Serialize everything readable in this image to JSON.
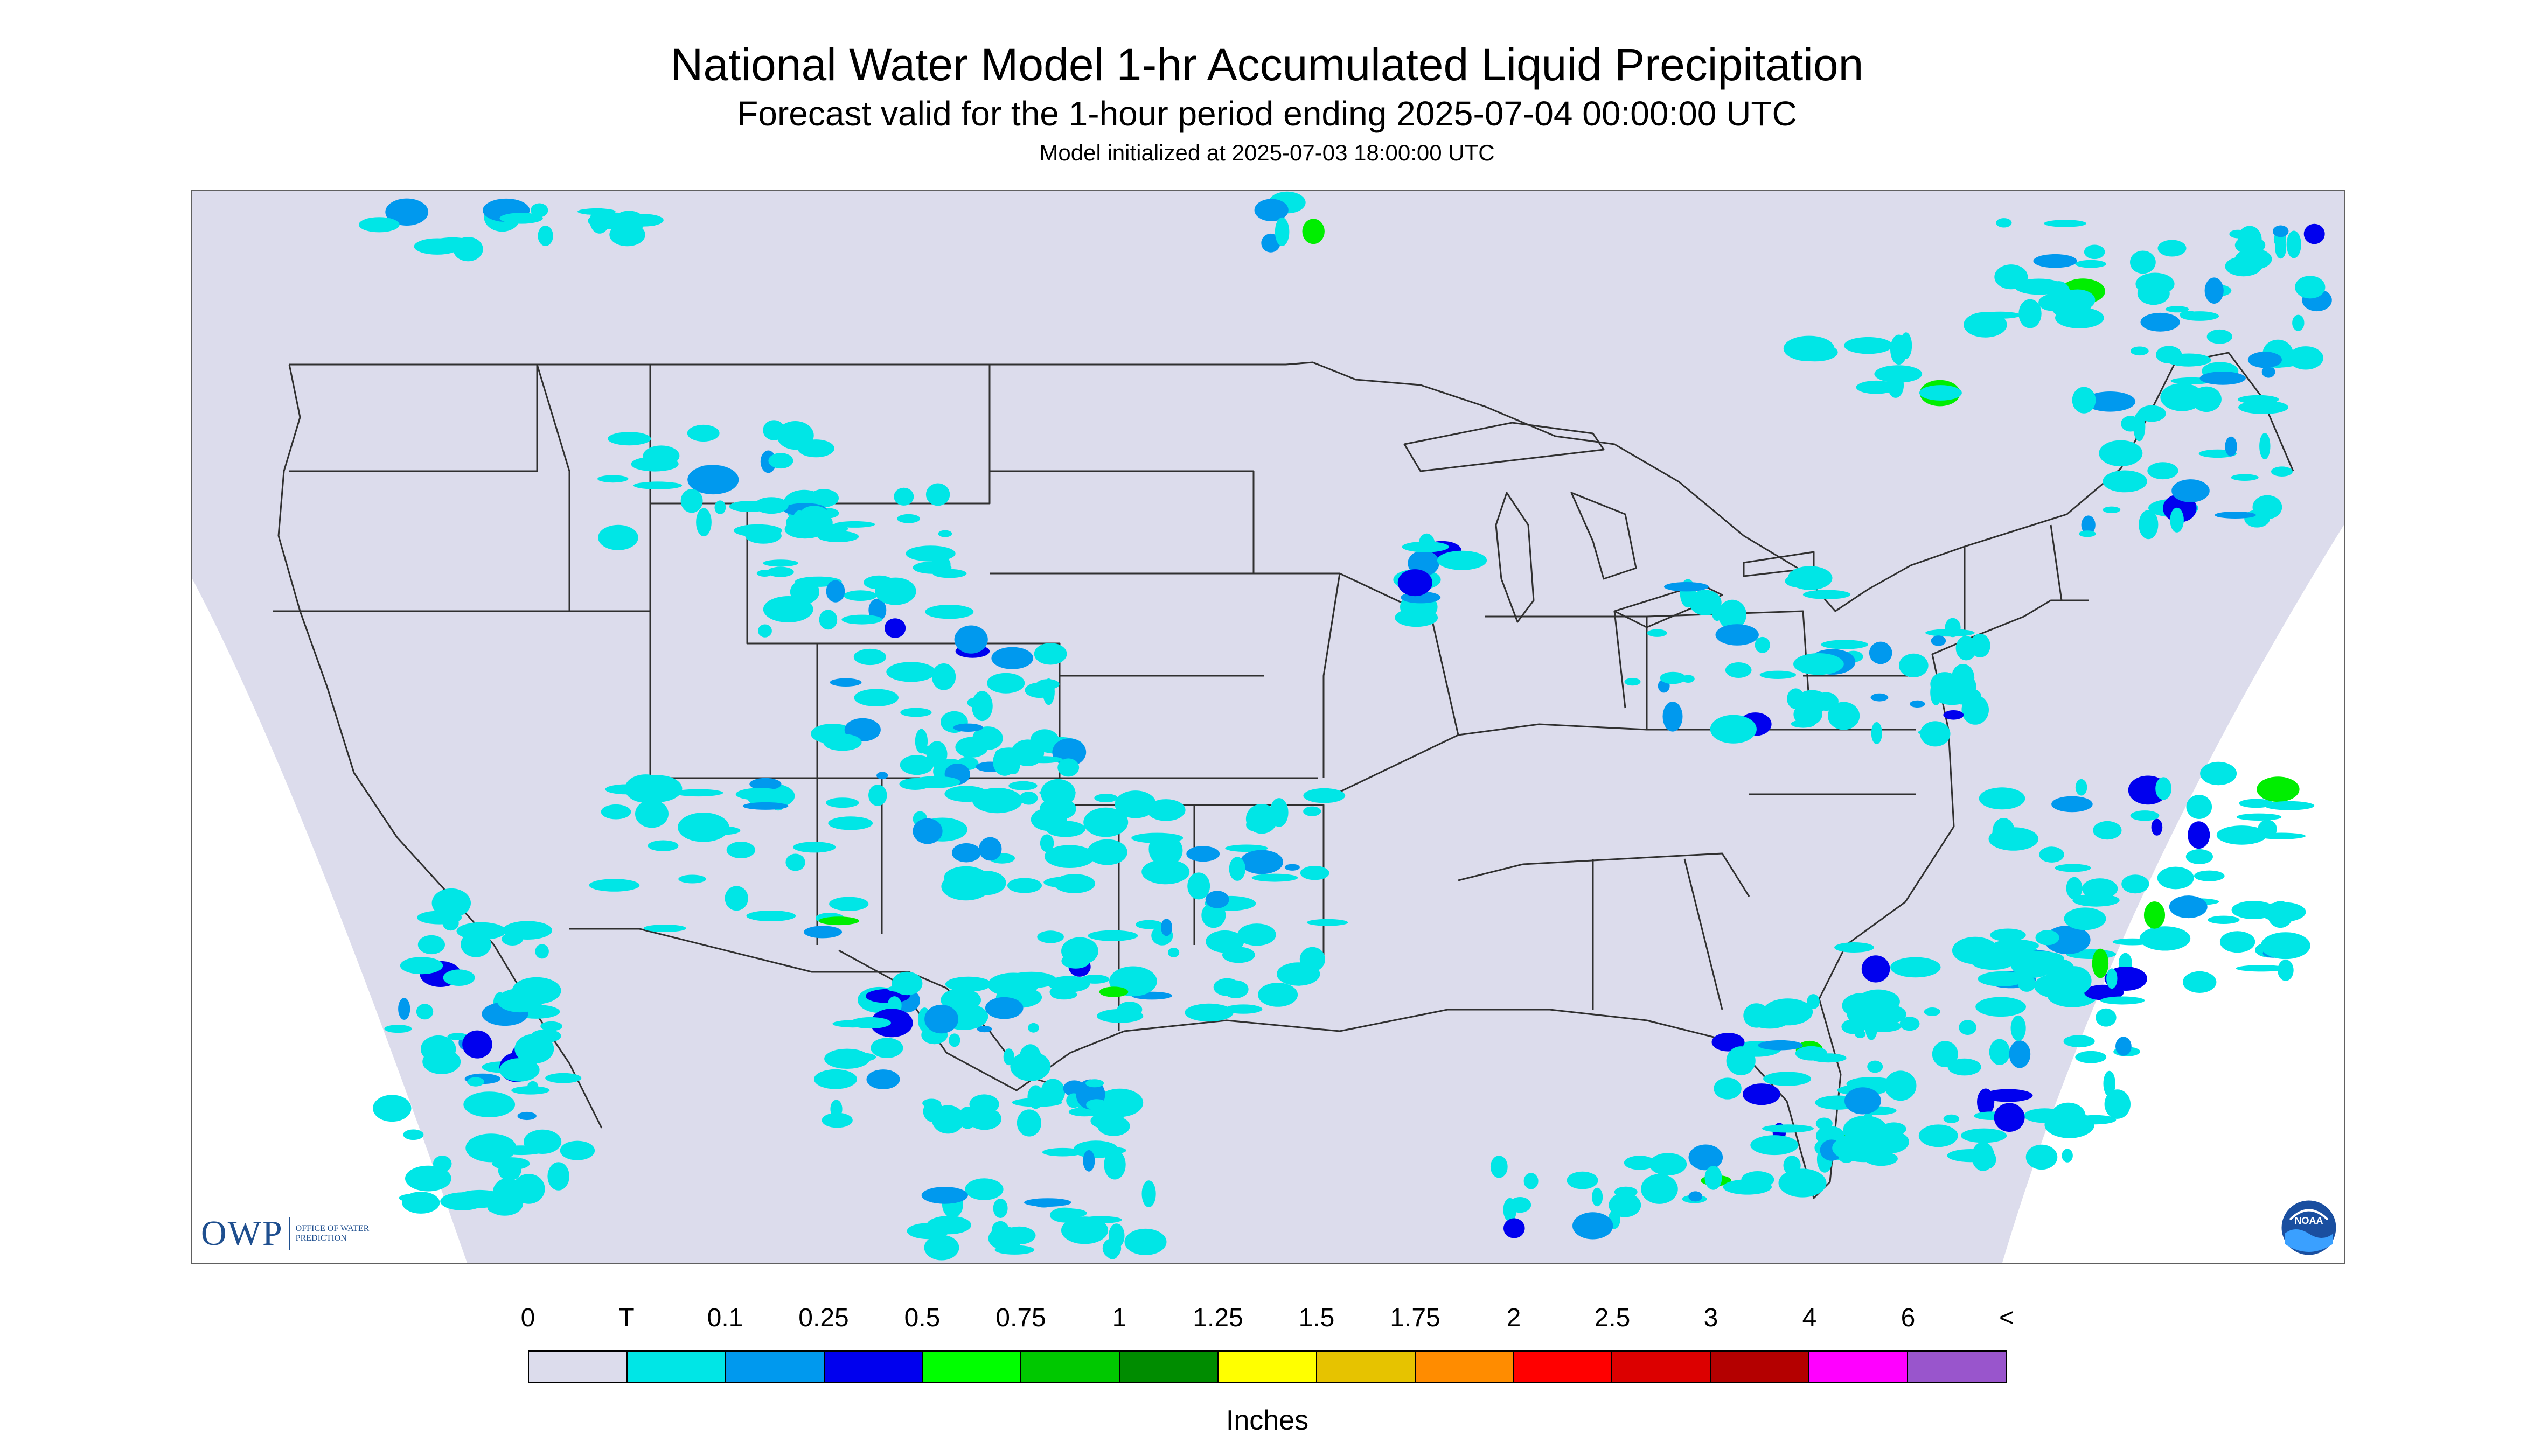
{
  "header": {
    "title": "National Water Model 1-hr Accumulated Liquid Precipitation",
    "subtitle": "Forecast valid for the 1-hour period ending 2025-07-04 00:00:00 UTC",
    "init_line": "Model initialized at 2025-07-03 18:00:00 UTC"
  },
  "logos": {
    "owp_text": "OWP",
    "owp_subtext": "OFFICE OF WATER PREDICTION",
    "noaa_text": "NOAA"
  },
  "map": {
    "background_color": "#dcdcec",
    "outside_color": "#ffffff",
    "border_color": "#303030",
    "precip_colors": {
      "trace": "#00e6e6",
      "light": "#0099ee",
      "moderate": "#0000ee",
      "heavy": "#00ee00",
      "very_heavy": "#ffff00"
    }
  },
  "legend": {
    "labels": [
      "0",
      "T",
      "0.1",
      "0.25",
      "0.5",
      "0.75",
      "1",
      "1.25",
      "1.5",
      "1.75",
      "2",
      "2.5",
      "3",
      "4",
      "6",
      "<"
    ],
    "colors": [
      "#dcdcec",
      "#00e6e6",
      "#0099ee",
      "#0000ee",
      "#00ff00",
      "#00c800",
      "#008c00",
      "#ffff00",
      "#e6c300",
      "#ff8c00",
      "#ff0000",
      "#dc0000",
      "#b40000",
      "#ff00ff",
      "#9955cc"
    ],
    "unit_label": "Inches"
  }
}
